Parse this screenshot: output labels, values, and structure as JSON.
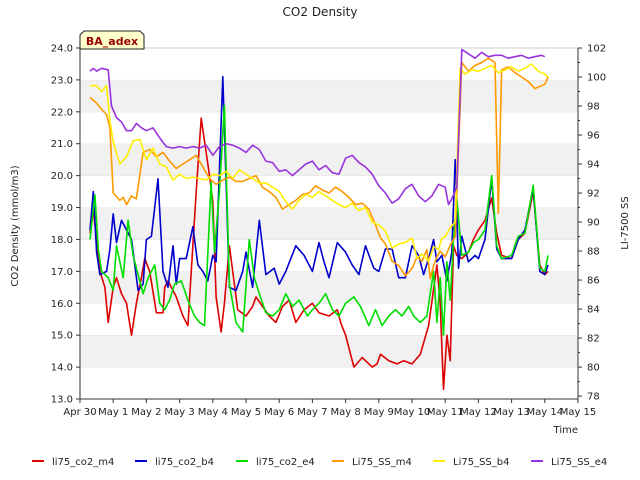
{
  "chart_data": {
    "type": "line",
    "title": "CO2 Density",
    "xlabel": "Time",
    "ylabel": "CO2 Density (mmol/m3)",
    "y2label": "LI-7500 SS",
    "badge": "BA_adex",
    "xlim": [
      0,
      15
    ],
    "ylim": [
      13.0,
      24.0
    ],
    "y2lim": [
      77.8,
      102.0
    ],
    "x_ticks": [
      0,
      1,
      2,
      3,
      4,
      5,
      6,
      7,
      8,
      9,
      10,
      11,
      12,
      13,
      14,
      15
    ],
    "x_tick_labels": [
      "Apr 30",
      "May 1",
      "May 2",
      "May 3",
      "May 4",
      "May 5",
      "May 6",
      "May 7",
      "May 8",
      "May 9",
      "May 10",
      "May 11",
      "May 12",
      "May 13",
      "May 14",
      "May 15"
    ],
    "y_ticks": [
      13.0,
      14.0,
      15.0,
      16.0,
      17.0,
      18.0,
      19.0,
      20.0,
      21.0,
      22.0,
      23.0,
      24.0
    ],
    "y_tick_labels": [
      "13.0",
      "14.0",
      "15.0",
      "16.0",
      "17.0",
      "18.0",
      "19.0",
      "20.0",
      "21.0",
      "22.0",
      "23.0",
      "24.0"
    ],
    "y2_ticks": [
      78,
      80,
      82,
      84,
      86,
      88,
      90,
      92,
      94,
      96,
      98,
      100,
      102
    ],
    "y2_tick_labels": [
      "78",
      "80",
      "82",
      "84",
      "86",
      "88",
      "90",
      "92",
      "94",
      "96",
      "98",
      "100",
      "102"
    ],
    "legend_position": "bottom",
    "series": [
      {
        "name": "li75_co2_m4",
        "color": "#dd0000",
        "axis": "left",
        "x": [
          0.3,
          0.4,
          0.5,
          0.6,
          0.75,
          0.85,
          1.0,
          1.1,
          1.25,
          1.4,
          1.55,
          1.7,
          1.85,
          1.95,
          2.1,
          2.3,
          2.5,
          2.55,
          2.65,
          2.9,
          3.1,
          3.25,
          3.5,
          3.65,
          3.9,
          4.0,
          4.1,
          4.25,
          4.35,
          4.5,
          4.75,
          5.0,
          5.2,
          5.3,
          5.5,
          5.7,
          5.9,
          6.1,
          6.3,
          6.5,
          6.75,
          7.0,
          7.2,
          7.5,
          7.75,
          7.85,
          8.0,
          8.25,
          8.5,
          8.8,
          8.95,
          9.05,
          9.3,
          9.55,
          9.75,
          10.0,
          10.25,
          10.5,
          10.75,
          10.85,
          10.95,
          11.05,
          11.15,
          11.25,
          11.35,
          11.5,
          11.7,
          11.85,
          12.0,
          12.2,
          12.4,
          12.55,
          12.7,
          13.0,
          13.2,
          13.4,
          13.65,
          13.85,
          14.0,
          14.1
        ],
        "y": [
          18.2,
          18.9,
          18.0,
          17.0,
          16.5,
          15.4,
          16.5,
          16.8,
          16.3,
          16.0,
          15.0,
          16.0,
          16.8,
          17.4,
          17.0,
          15.7,
          15.7,
          16.5,
          16.7,
          16.2,
          15.6,
          15.3,
          19.5,
          21.8,
          20.0,
          19.2,
          16.2,
          15.1,
          16.0,
          17.8,
          15.8,
          15.6,
          15.9,
          16.2,
          15.9,
          15.6,
          15.4,
          15.9,
          16.1,
          15.4,
          15.8,
          16.0,
          15.7,
          15.6,
          15.8,
          15.4,
          15.0,
          14.0,
          14.3,
          14.0,
          14.1,
          14.4,
          14.2,
          14.1,
          14.2,
          14.1,
          14.4,
          15.3,
          17.2,
          16.0,
          13.3,
          15.0,
          14.2,
          17.8,
          17.5,
          17.4,
          17.6,
          18.0,
          18.3,
          18.6,
          19.3,
          18.2,
          17.5,
          17.4,
          18.0,
          18.2,
          19.5,
          17.2,
          16.9,
          17.0
        ]
      },
      {
        "name": "li75_co2_b4",
        "color": "#0000cc",
        "axis": "left",
        "x": [
          0.3,
          0.4,
          0.5,
          0.6,
          0.8,
          0.9,
          1.0,
          1.1,
          1.25,
          1.4,
          1.55,
          1.75,
          1.9,
          2.0,
          2.15,
          2.35,
          2.5,
          2.65,
          2.8,
          2.9,
          3.0,
          3.2,
          3.4,
          3.55,
          3.7,
          3.85,
          4.0,
          4.1,
          4.3,
          4.5,
          4.7,
          4.9,
          5.0,
          5.2,
          5.4,
          5.6,
          5.85,
          6.0,
          6.2,
          6.5,
          6.75,
          7.0,
          7.2,
          7.35,
          7.5,
          7.75,
          8.0,
          8.2,
          8.4,
          8.6,
          8.85,
          9.0,
          9.2,
          9.4,
          9.6,
          9.8,
          10.0,
          10.2,
          10.35,
          10.5,
          10.65,
          10.75,
          10.9,
          11.05,
          11.2,
          11.3,
          11.4,
          11.5,
          11.7,
          11.9,
          12.0,
          12.2,
          12.4,
          12.55,
          12.7,
          13.0,
          13.2,
          13.4,
          13.65,
          13.85,
          14.0,
          14.1
        ],
        "y": [
          18.3,
          19.5,
          17.6,
          16.9,
          17.0,
          17.7,
          18.8,
          17.9,
          18.6,
          18.3,
          18.0,
          16.4,
          16.6,
          18.0,
          18.1,
          19.9,
          17.0,
          16.5,
          17.8,
          16.6,
          17.4,
          17.4,
          18.4,
          17.2,
          17.0,
          16.7,
          17.5,
          17.3,
          23.1,
          16.5,
          16.4,
          17.0,
          17.6,
          16.5,
          18.6,
          16.9,
          17.1,
          16.6,
          17.0,
          17.8,
          17.5,
          17.0,
          17.9,
          17.3,
          16.8,
          17.9,
          17.6,
          17.2,
          16.9,
          17.8,
          17.1,
          17.0,
          17.7,
          17.7,
          16.8,
          16.8,
          17.8,
          17.5,
          16.9,
          17.4,
          18.0,
          17.3,
          17.5,
          16.7,
          17.6,
          20.5,
          17.1,
          18.1,
          17.3,
          17.5,
          17.4,
          18.0,
          19.9,
          17.7,
          17.4,
          17.4,
          18.0,
          18.3,
          19.6,
          17.0,
          16.9,
          17.2
        ]
      },
      {
        "name": "li75_co2_e4",
        "color": "#00dd00",
        "axis": "left",
        "x": [
          0.3,
          0.45,
          0.55,
          0.65,
          0.85,
          1.0,
          1.1,
          1.3,
          1.45,
          1.6,
          1.75,
          1.9,
          2.05,
          2.25,
          2.4,
          2.55,
          2.7,
          2.85,
          3.05,
          3.25,
          3.45,
          3.6,
          3.75,
          3.95,
          4.05,
          4.2,
          4.35,
          4.5,
          4.7,
          4.9,
          5.1,
          5.25,
          5.4,
          5.6,
          5.8,
          6.0,
          6.2,
          6.4,
          6.6,
          6.85,
          7.0,
          7.2,
          7.4,
          7.6,
          7.8,
          8.0,
          8.25,
          8.45,
          8.7,
          8.9,
          9.1,
          9.3,
          9.5,
          9.7,
          9.9,
          10.05,
          10.25,
          10.45,
          10.65,
          10.75,
          10.85,
          10.95,
          11.05,
          11.15,
          11.25,
          11.35,
          11.5,
          11.7,
          11.85,
          12.0,
          12.2,
          12.4,
          12.55,
          12.7,
          13.0,
          13.2,
          13.4,
          13.65,
          13.85,
          14.0,
          14.1
        ],
        "y": [
          18.0,
          19.4,
          17.7,
          17.0,
          16.8,
          16.4,
          17.8,
          16.8,
          18.6,
          17.5,
          16.9,
          16.3,
          16.8,
          17.2,
          16.0,
          15.8,
          16.1,
          16.6,
          16.7,
          16.1,
          15.6,
          15.4,
          15.3,
          19.8,
          17.6,
          19.5,
          22.2,
          16.6,
          15.4,
          15.1,
          18.0,
          16.8,
          16.3,
          15.7,
          15.6,
          15.8,
          16.3,
          15.9,
          16.1,
          15.6,
          15.8,
          16.0,
          16.3,
          15.8,
          15.6,
          16.0,
          16.2,
          15.9,
          15.3,
          15.8,
          15.3,
          15.6,
          15.8,
          15.6,
          15.9,
          15.6,
          15.4,
          15.6,
          17.0,
          15.4,
          16.8,
          15.0,
          17.3,
          16.1,
          18.0,
          19.3,
          17.5,
          17.6,
          17.9,
          18.0,
          18.3,
          20.0,
          17.8,
          17.4,
          17.5,
          18.1,
          18.2,
          19.7,
          17.1,
          17.0,
          17.5
        ]
      },
      {
        "name": "Li75_SS_m4",
        "color": "#ff9900",
        "axis": "right",
        "x": [
          0.3,
          0.5,
          0.6,
          0.8,
          0.9,
          1.0,
          1.2,
          1.3,
          1.4,
          1.55,
          1.7,
          1.9,
          2.1,
          2.3,
          2.5,
          2.7,
          2.9,
          3.1,
          3.3,
          3.5,
          3.7,
          3.9,
          4.1,
          4.3,
          4.5,
          4.7,
          4.9,
          5.1,
          5.3,
          5.5,
          5.7,
          5.9,
          6.1,
          6.3,
          6.5,
          6.7,
          6.9,
          7.1,
          7.3,
          7.5,
          7.7,
          7.9,
          8.1,
          8.3,
          8.5,
          8.7,
          8.9,
          9.05,
          9.2,
          9.4,
          9.6,
          9.8,
          10.0,
          10.15,
          10.3,
          10.45,
          10.55,
          10.65,
          10.75,
          10.85,
          11.0,
          11.15,
          11.3,
          11.5,
          11.7,
          11.9,
          12.1,
          12.3,
          12.5,
          12.6,
          12.7,
          12.9,
          13.1,
          13.3,
          13.5,
          13.7,
          13.9,
          14.0,
          14.1
        ],
        "y": [
          98.6,
          98.2,
          97.9,
          97.4,
          96.5,
          92.0,
          91.5,
          91.7,
          91.2,
          91.8,
          91.6,
          94.8,
          95.0,
          94.5,
          94.8,
          94.2,
          93.7,
          94.0,
          94.3,
          94.6,
          93.8,
          93.0,
          92.6,
          92.9,
          93.1,
          92.8,
          92.8,
          93.0,
          93.2,
          92.4,
          92.1,
          91.7,
          90.9,
          91.2,
          91.5,
          91.9,
          92.0,
          92.5,
          92.2,
          92.0,
          92.4,
          92.1,
          91.7,
          91.2,
          91.3,
          90.9,
          89.8,
          88.9,
          88.5,
          87.3,
          87.0,
          86.3,
          86.8,
          87.6,
          87.3,
          88.1,
          86.1,
          87.0,
          87.6,
          88.0,
          87.6,
          88.4,
          89.0,
          101.0,
          100.4,
          100.8,
          101.0,
          101.3,
          101.0,
          90.6,
          100.5,
          100.7,
          100.3,
          100.0,
          99.7,
          99.2,
          99.4,
          99.5,
          100.0
        ]
      },
      {
        "name": "Li75_SS_b4",
        "color": "#ffee00",
        "axis": "right",
        "x": [
          0.3,
          0.5,
          0.65,
          0.8,
          0.9,
          1.0,
          1.2,
          1.4,
          1.6,
          1.8,
          2.0,
          2.2,
          2.4,
          2.6,
          2.8,
          3.0,
          3.2,
          3.4,
          3.6,
          3.8,
          4.0,
          4.2,
          4.4,
          4.6,
          4.8,
          5.0,
          5.2,
          5.4,
          5.6,
          5.8,
          6.0,
          6.2,
          6.4,
          6.6,
          6.8,
          7.0,
          7.2,
          7.4,
          7.6,
          7.8,
          8.0,
          8.2,
          8.4,
          8.6,
          8.8,
          9.0,
          9.2,
          9.4,
          9.6,
          9.8,
          10.0,
          10.15,
          10.3,
          10.5,
          10.65,
          10.8,
          10.9,
          11.0,
          11.15,
          11.3,
          11.45,
          11.6,
          11.8,
          12.0,
          12.2,
          12.4,
          12.6,
          12.8,
          13.0,
          13.2,
          13.4,
          13.6,
          13.8,
          14.0,
          14.1
        ],
        "y": [
          99.4,
          99.4,
          99.0,
          99.4,
          97.0,
          95.5,
          94.0,
          94.5,
          95.6,
          95.7,
          94.3,
          95.1,
          94.0,
          93.8,
          92.9,
          93.3,
          93.0,
          93.1,
          93.0,
          92.9,
          93.3,
          93.2,
          93.5,
          93.0,
          93.6,
          93.3,
          93.0,
          92.7,
          92.7,
          92.4,
          92.1,
          91.4,
          90.9,
          91.5,
          91.9,
          91.7,
          92.1,
          91.8,
          91.5,
          91.2,
          91.0,
          91.3,
          90.8,
          91.0,
          90.0,
          89.8,
          89.4,
          88.2,
          88.5,
          88.6,
          88.9,
          87.5,
          87.8,
          87.3,
          88.3,
          88.1,
          88.9,
          89.0,
          89.6,
          90.0,
          100.6,
          100.2,
          100.5,
          100.4,
          100.6,
          100.8,
          100.3,
          100.5,
          100.7,
          100.4,
          100.6,
          100.9,
          100.4,
          100.2,
          100.0
        ]
      },
      {
        "name": "Li75_SS_e4",
        "color": "#9933dd",
        "axis": "right",
        "x": [
          0.3,
          0.4,
          0.5,
          0.65,
          0.85,
          0.95,
          1.1,
          1.25,
          1.4,
          1.55,
          1.7,
          1.85,
          2.0,
          2.2,
          2.4,
          2.6,
          2.8,
          3.0,
          3.2,
          3.4,
          3.6,
          3.8,
          4.0,
          4.2,
          4.4,
          4.6,
          4.8,
          5.0,
          5.2,
          5.4,
          5.6,
          5.8,
          6.0,
          6.2,
          6.4,
          6.6,
          6.8,
          7.0,
          7.2,
          7.4,
          7.6,
          7.8,
          8.0,
          8.2,
          8.4,
          8.6,
          8.8,
          9.0,
          9.2,
          9.4,
          9.6,
          9.8,
          10.0,
          10.2,
          10.4,
          10.6,
          10.8,
          11.0,
          11.1,
          11.2,
          11.35,
          11.5,
          11.7,
          11.9,
          12.1,
          12.3,
          12.5,
          12.7,
          12.9,
          13.1,
          13.3,
          13.5,
          13.7,
          13.9,
          14.0
        ],
        "y": [
          100.4,
          100.6,
          100.4,
          100.6,
          100.5,
          98.0,
          97.2,
          96.9,
          96.3,
          96.3,
          96.8,
          96.5,
          96.3,
          96.5,
          95.8,
          95.2,
          95.1,
          95.2,
          95.1,
          95.2,
          95.1,
          95.3,
          94.6,
          95.2,
          95.4,
          95.3,
          95.1,
          94.8,
          95.3,
          95.0,
          94.2,
          94.1,
          93.5,
          93.6,
          93.2,
          93.6,
          94.0,
          94.2,
          93.6,
          93.9,
          93.4,
          93.3,
          94.4,
          94.6,
          94.1,
          93.8,
          93.3,
          92.5,
          92.0,
          91.3,
          91.6,
          92.3,
          92.6,
          91.8,
          91.4,
          91.8,
          92.6,
          92.4,
          91.2,
          91.6,
          92.4,
          101.9,
          101.6,
          101.3,
          101.7,
          101.4,
          101.5,
          101.5,
          101.3,
          101.4,
          101.5,
          101.3,
          101.4,
          101.5,
          101.4
        ]
      }
    ]
  }
}
